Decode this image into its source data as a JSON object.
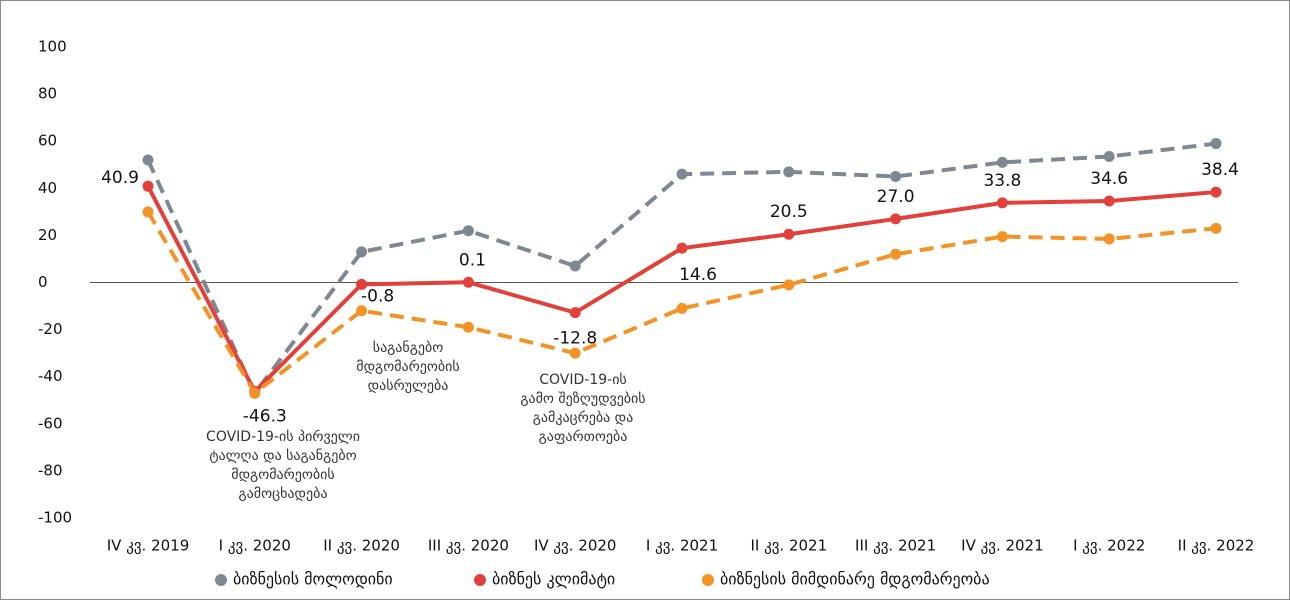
{
  "chart_data": {
    "type": "line",
    "categories": [
      "IV კვ. 2019",
      "I კვ. 2020",
      "II კვ. 2020",
      "III კვ. 2020",
      "IV კვ. 2020",
      "I კვ. 2021",
      "II კვ. 2021",
      "III კვ. 2021",
      "IV კვ. 2021",
      "I კვ. 2022",
      "II კვ. 2022"
    ],
    "series": [
      {
        "name": "ბიზნესის მოლოდინი",
        "color": "#7f8790",
        "dashed": true,
        "values": [
          52,
          -47,
          13,
          22,
          7,
          46,
          47,
          45,
          51,
          53.5,
          59
        ]
      },
      {
        "name": "ბიზნეს კლიმატი",
        "color": "#e2403a",
        "dashed": false,
        "values": [
          40.9,
          -46.3,
          -0.8,
          0.1,
          -12.8,
          14.6,
          20.5,
          27.0,
          33.8,
          34.6,
          38.4
        ],
        "value_labels": [
          "40.9",
          "-46.3",
          "-0.8",
          "0.1",
          "-12.8",
          "14.6",
          "20.5",
          "27.0",
          "33.8",
          "34.6",
          "38.4"
        ]
      },
      {
        "name": "ბიზნესის მიმდინარე მდგომარეობა",
        "color": "#f39325",
        "dashed": true,
        "values": [
          30,
          -47,
          -12,
          -19,
          -30,
          -11,
          -1,
          12,
          19.5,
          18.5,
          23
        ]
      }
    ],
    "annotations": [
      [
        "COVID-19-ის პირველი",
        "ტალღა და საგანგებო",
        "მდგომარეობის",
        "გამოცხადება"
      ],
      [
        "საგანგებო",
        "მდგომარეობის",
        "დასრულება"
      ],
      [
        "COVID-19-ის",
        "გამო შეზღუდვების",
        "გამკაცრება და",
        "გაფართოება"
      ]
    ],
    "ylim": [
      -100,
      100
    ],
    "yticks": [
      -100,
      -80,
      -60,
      -40,
      -20,
      0,
      20,
      40,
      60,
      80,
      100
    ]
  }
}
